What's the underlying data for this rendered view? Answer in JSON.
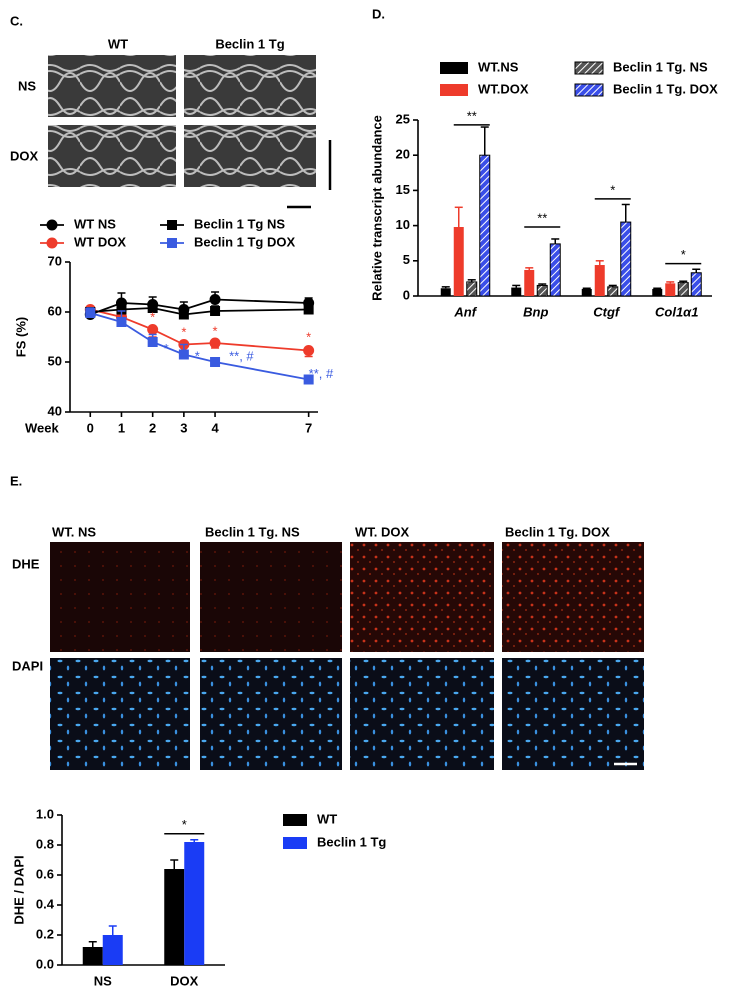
{
  "panel_labels": [
    "C.",
    "D.",
    "E."
  ],
  "echo": {
    "columns": [
      "WT",
      "Beclin 1 Tg"
    ],
    "rows": [
      "NS",
      "DOX"
    ]
  },
  "stain": {
    "columns": [
      "WT. NS",
      "Beclin 1 Tg. NS",
      "WT. DOX",
      "Beclin 1 Tg. DOX"
    ],
    "rows": [
      "DHE",
      "DAPI"
    ]
  },
  "chart_data": [
    {
      "type": "line",
      "xlabel": "Week",
      "ylabel": "FS (%)",
      "x": [
        0,
        1,
        2,
        3,
        4,
        7
      ],
      "xlim": [
        -0.65,
        7.3
      ],
      "xticks": [
        0,
        1,
        2,
        3,
        4,
        7
      ],
      "ylim": [
        40,
        70
      ],
      "yticks": [
        40,
        50,
        60,
        70
      ],
      "series": [
        {
          "name": "WT NS",
          "color": "#000000",
          "marker": "circle",
          "values": [
            59.5,
            61.8,
            61.5,
            60.5,
            62.5,
            61.8
          ],
          "errors": [
            1.0,
            2.0,
            1.5,
            1.5,
            1.5,
            1.0
          ]
        },
        {
          "name": "WT DOX",
          "color": "#ee3b2b",
          "marker": "circle",
          "values": [
            60.5,
            59,
            56.5,
            53.5,
            53.8,
            52.3
          ],
          "errors": [
            0.8,
            1.2,
            1.5,
            1.2,
            1.0,
            1.2
          ]
        },
        {
          "name": "Beclin 1 Tg NS",
          "color": "#000000",
          "marker": "square",
          "values": [
            60,
            60.5,
            60.8,
            59.5,
            60.2,
            60.5
          ],
          "errors": [
            0.8,
            1.0,
            1.2,
            1.5,
            1.0,
            0.8
          ]
        },
        {
          "name": "Beclin 1 Tg DOX",
          "color": "#3a5be0",
          "marker": "square",
          "values": [
            59.8,
            58,
            54,
            51.5,
            50,
            46.5
          ],
          "errors": [
            1.0,
            2.2,
            1.5,
            2.0,
            0.5,
            0.5
          ]
        }
      ],
      "annotations": [
        {
          "text": "*",
          "x": 2,
          "y": 58.8,
          "color": "#ee3b2b"
        },
        {
          "text": "*",
          "x": 3,
          "y": 55.8,
          "color": "#ee3b2b"
        },
        {
          "text": "*",
          "x": 4,
          "y": 56.0,
          "color": "#ee3b2b"
        },
        {
          "text": "*",
          "x": 7,
          "y": 54.8,
          "color": "#ee3b2b"
        },
        {
          "text": "*",
          "x": 2.35,
          "y": 52.5,
          "color": "#3a5be0"
        },
        {
          "text": "*",
          "x": 3.35,
          "y": 51.0,
          "color": "#3a5be0"
        },
        {
          "text": "**, #",
          "x": 4.45,
          "y": 51.0,
          "color": "#3a5be0"
        },
        {
          "text": "**, #",
          "x": 7.0,
          "y": 47.5,
          "color": "#3a5be0"
        }
      ]
    },
    {
      "type": "bar",
      "ylabel": "Relative transcript abundance",
      "categories": [
        "Anf",
        "Bnp",
        "Ctgf",
        "Col1α1"
      ],
      "ylim": [
        0,
        25
      ],
      "yticks": [
        0,
        5,
        10,
        15,
        20,
        25
      ],
      "series": [
        {
          "name": "WT.NS",
          "color": "#000000",
          "hatch": false,
          "values": [
            1.1,
            1.2,
            1.0,
            1.0
          ],
          "errors": [
            0.2,
            0.3,
            0.1,
            0.1
          ]
        },
        {
          "name": "WT.DOX",
          "color": "#ee3b2b",
          "hatch": false,
          "values": [
            9.8,
            3.7,
            4.4,
            1.8
          ],
          "errors": [
            2.8,
            0.3,
            0.6,
            0.2
          ]
        },
        {
          "name": "Beclin 1 Tg. NS",
          "color": "#555555",
          "hatch": true,
          "values": [
            2.0,
            1.5,
            1.3,
            1.9
          ],
          "errors": [
            0.3,
            0.2,
            0.2,
            0.2
          ]
        },
        {
          "name": "Beclin 1 Tg. DOX",
          "color": "#3a4ee8",
          "hatch": true,
          "values": [
            20,
            7.4,
            10.5,
            3.3
          ],
          "errors": [
            4.0,
            0.7,
            2.5,
            0.5
          ]
        }
      ],
      "significance": [
        {
          "text": "**",
          "y": 24.3
        },
        {
          "text": "**",
          "y": 9.8
        },
        {
          "text": "*",
          "y": 13.8
        },
        {
          "text": "*",
          "y": 4.6
        }
      ]
    },
    {
      "type": "bar",
      "ylabel": "DHE / DAPI",
      "categories": [
        "NS",
        "DOX"
      ],
      "ylim": [
        0,
        1
      ],
      "yticks": [
        {
          "value": 0,
          "label": "0.0"
        },
        0.2,
        0.4,
        0.6,
        0.8,
        {
          "value": 1,
          "label": "1.0"
        }
      ],
      "series": [
        {
          "name": "WT",
          "color": "#000000",
          "values": [
            0.12,
            0.64
          ],
          "errors": [
            0.035,
            0.06
          ]
        },
        {
          "name": "Beclin 1 Tg",
          "color": "#1a3cf5",
          "values": [
            0.2,
            0.82
          ],
          "errors": [
            0.06,
            0.015
          ]
        }
      ],
      "significance": [
        null,
        {
          "text": "*",
          "y": 0.875
        }
      ]
    }
  ]
}
